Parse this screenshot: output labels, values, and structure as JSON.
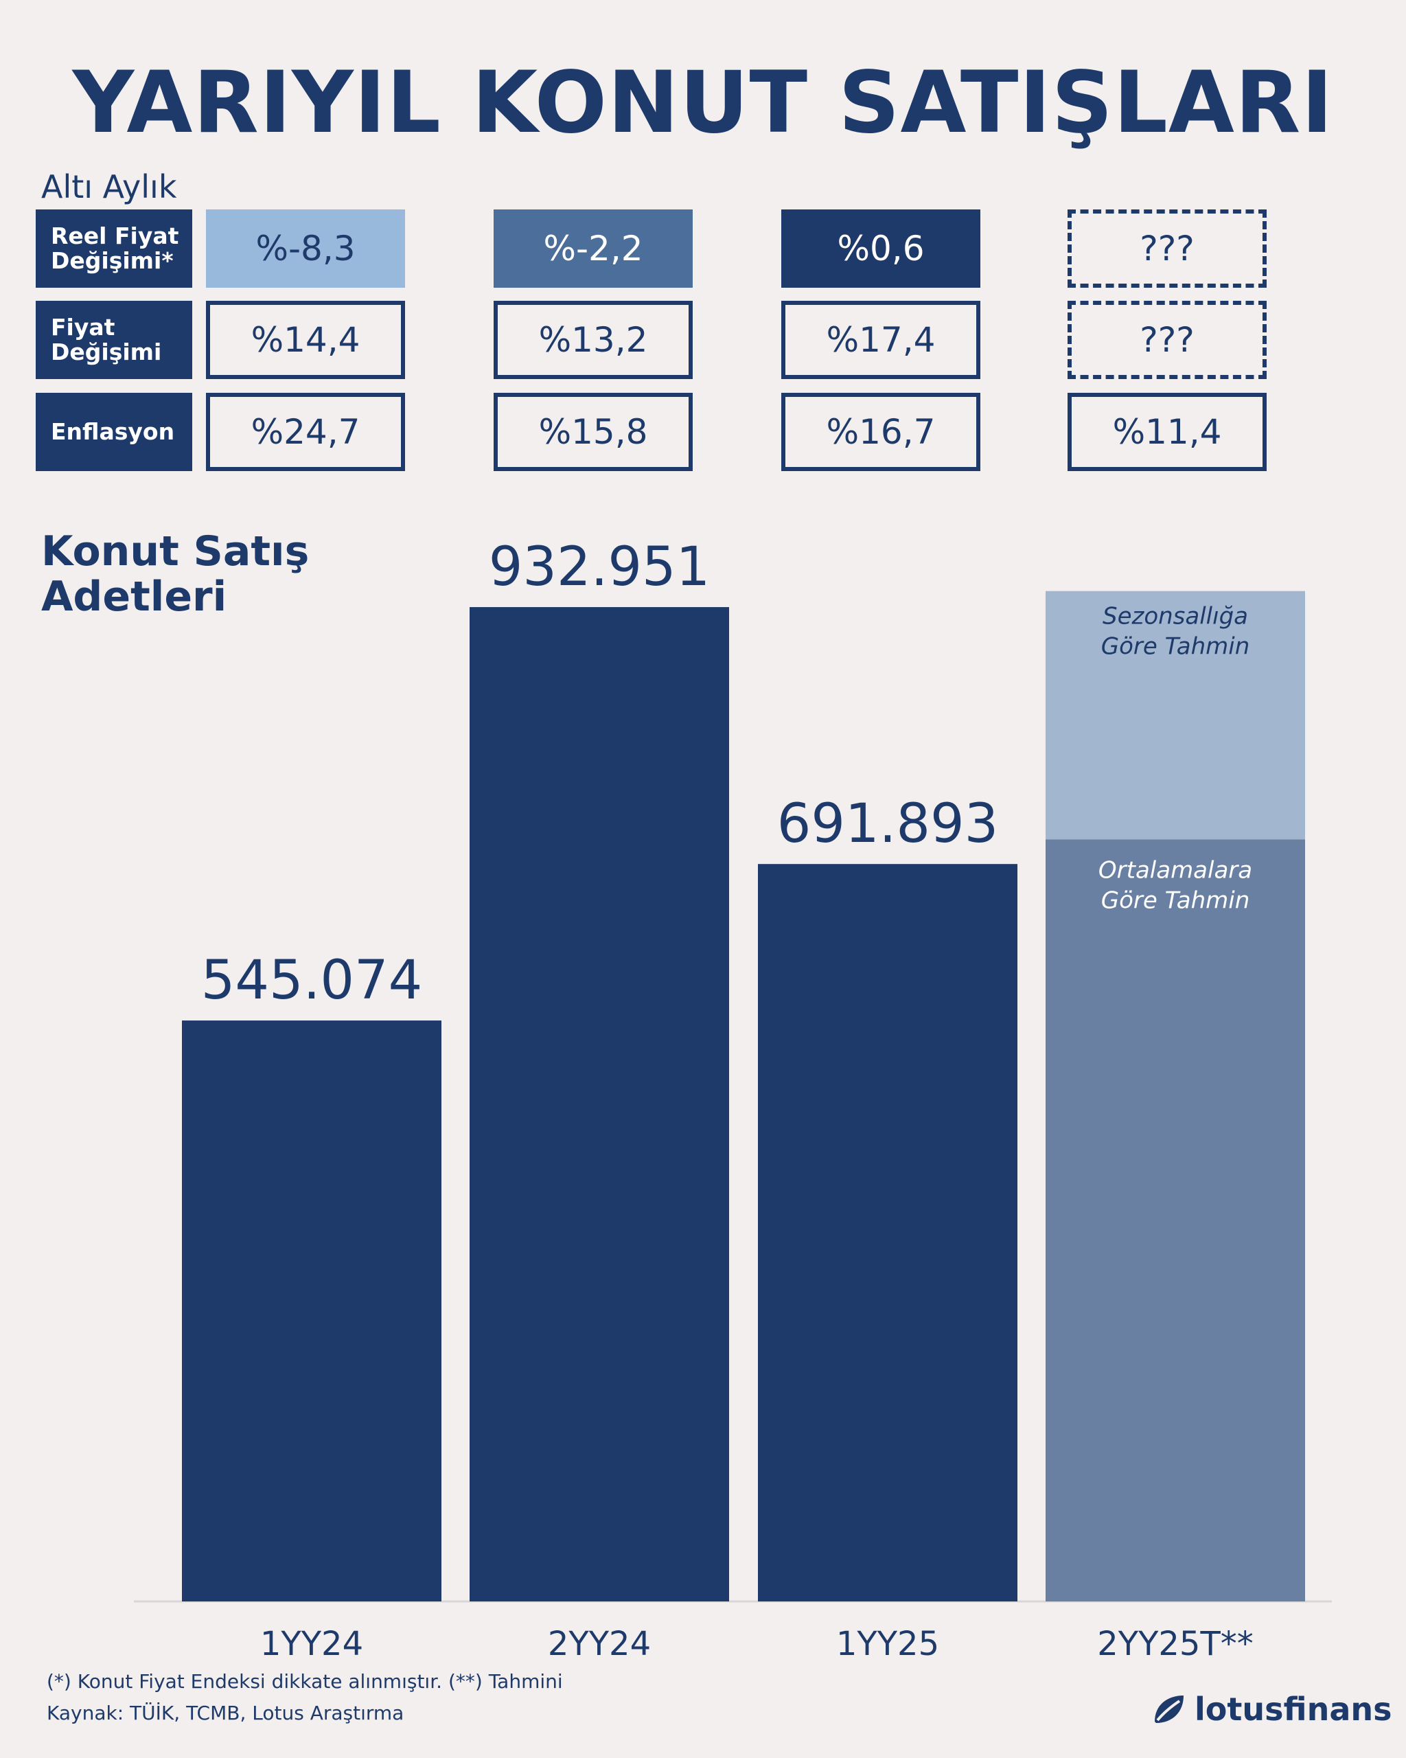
{
  "title": "YARIYIL KONUT SATIŞLARI",
  "table": {
    "section_label": "Altı Aylık",
    "rows": [
      {
        "label_line1": "Reel Fiyat",
        "label_line2": "Değişimi*",
        "values": [
          "%-8,3",
          "%-2,2",
          "%0,6",
          "???"
        ]
      },
      {
        "label_line1": "Fiyat",
        "label_line2": "Değişimi",
        "values": [
          "%14,4",
          "%13,2",
          "%17,4",
          "???"
        ]
      },
      {
        "label_line1": "Enflasyon",
        "label_line2": "",
        "values": [
          "%24,7",
          "%15,8",
          "%16,7",
          "%11,4"
        ]
      }
    ],
    "colors": {
      "real_change_cells": [
        "#98b8dc",
        "#4b6f9a",
        "#1e3a6a",
        "none"
      ],
      "dark": "#1e3a6a"
    }
  },
  "chart_data": {
    "type": "bar",
    "title_line1": "Konut Satış",
    "title_line2": "Adetleri",
    "categories": [
      "1YY24",
      "2YY24",
      "1YY25",
      "2YY25T**"
    ],
    "values": [
      545074,
      932951,
      691893,
      null
    ],
    "value_labels": [
      "545.074",
      "932.951",
      "691.893",
      ""
    ],
    "forecast": {
      "category": "2YY25T**",
      "average_based": {
        "label_line1": "Ortalamalara",
        "label_line2": "Göre Tahmin",
        "value": 715000
      },
      "seasonality_based": {
        "label_line1": "Sezonsallığa",
        "label_line2": "Göre Tahmin",
        "value": 948000
      }
    },
    "ylim": [
      0,
      1000000
    ],
    "colors": {
      "bar": "#1e3a6a",
      "forecast_average": "#6980a3",
      "forecast_seasonal": "#a3b6cf",
      "axis": "#d9d6d6"
    }
  },
  "footer": {
    "note": "(*) Konut Fiyat Endeksi dikkate alınmıştır. (**) Tahmini",
    "source": "Kaynak: TÜİK, TCMB, Lotus Araştırma"
  },
  "logo": {
    "text": "lotusfinans",
    "icon": "leaf-icon"
  }
}
